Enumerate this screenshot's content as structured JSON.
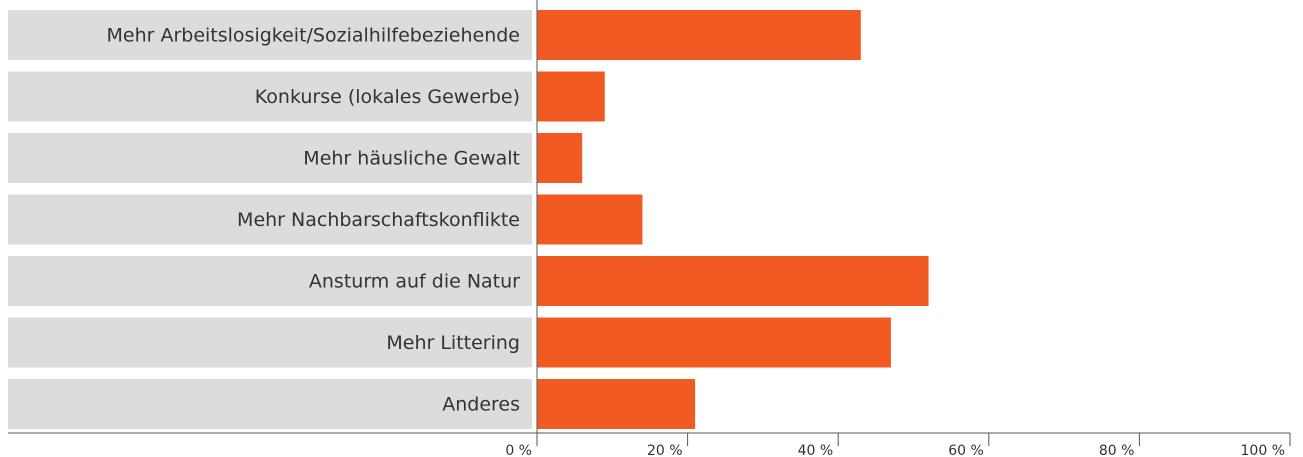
{
  "chart_data": {
    "type": "bar",
    "orientation": "horizontal",
    "categories": [
      "Mehr Arbeitslosigkeit/Sozialhilfebeziehende",
      "Konkurse (lokales Gewerbe)",
      "Mehr häusliche Gewalt",
      "Mehr Nachbarschaftskonflikte",
      "Ansturm auf die Natur",
      "Mehr Littering",
      "Anderes"
    ],
    "values": [
      43,
      9,
      6,
      14,
      52,
      47,
      21
    ],
    "color": "#f15a22",
    "xlim": [
      0,
      100
    ],
    "xticks": [
      {
        "value": 0,
        "label": "0 %"
      },
      {
        "value": 20,
        "label": "20 %"
      },
      {
        "value": 40,
        "label": "40 %"
      },
      {
        "value": 60,
        "label": "60 %"
      },
      {
        "value": 80,
        "label": "80 %"
      },
      {
        "value": 100,
        "label": "100 %"
      }
    ]
  }
}
